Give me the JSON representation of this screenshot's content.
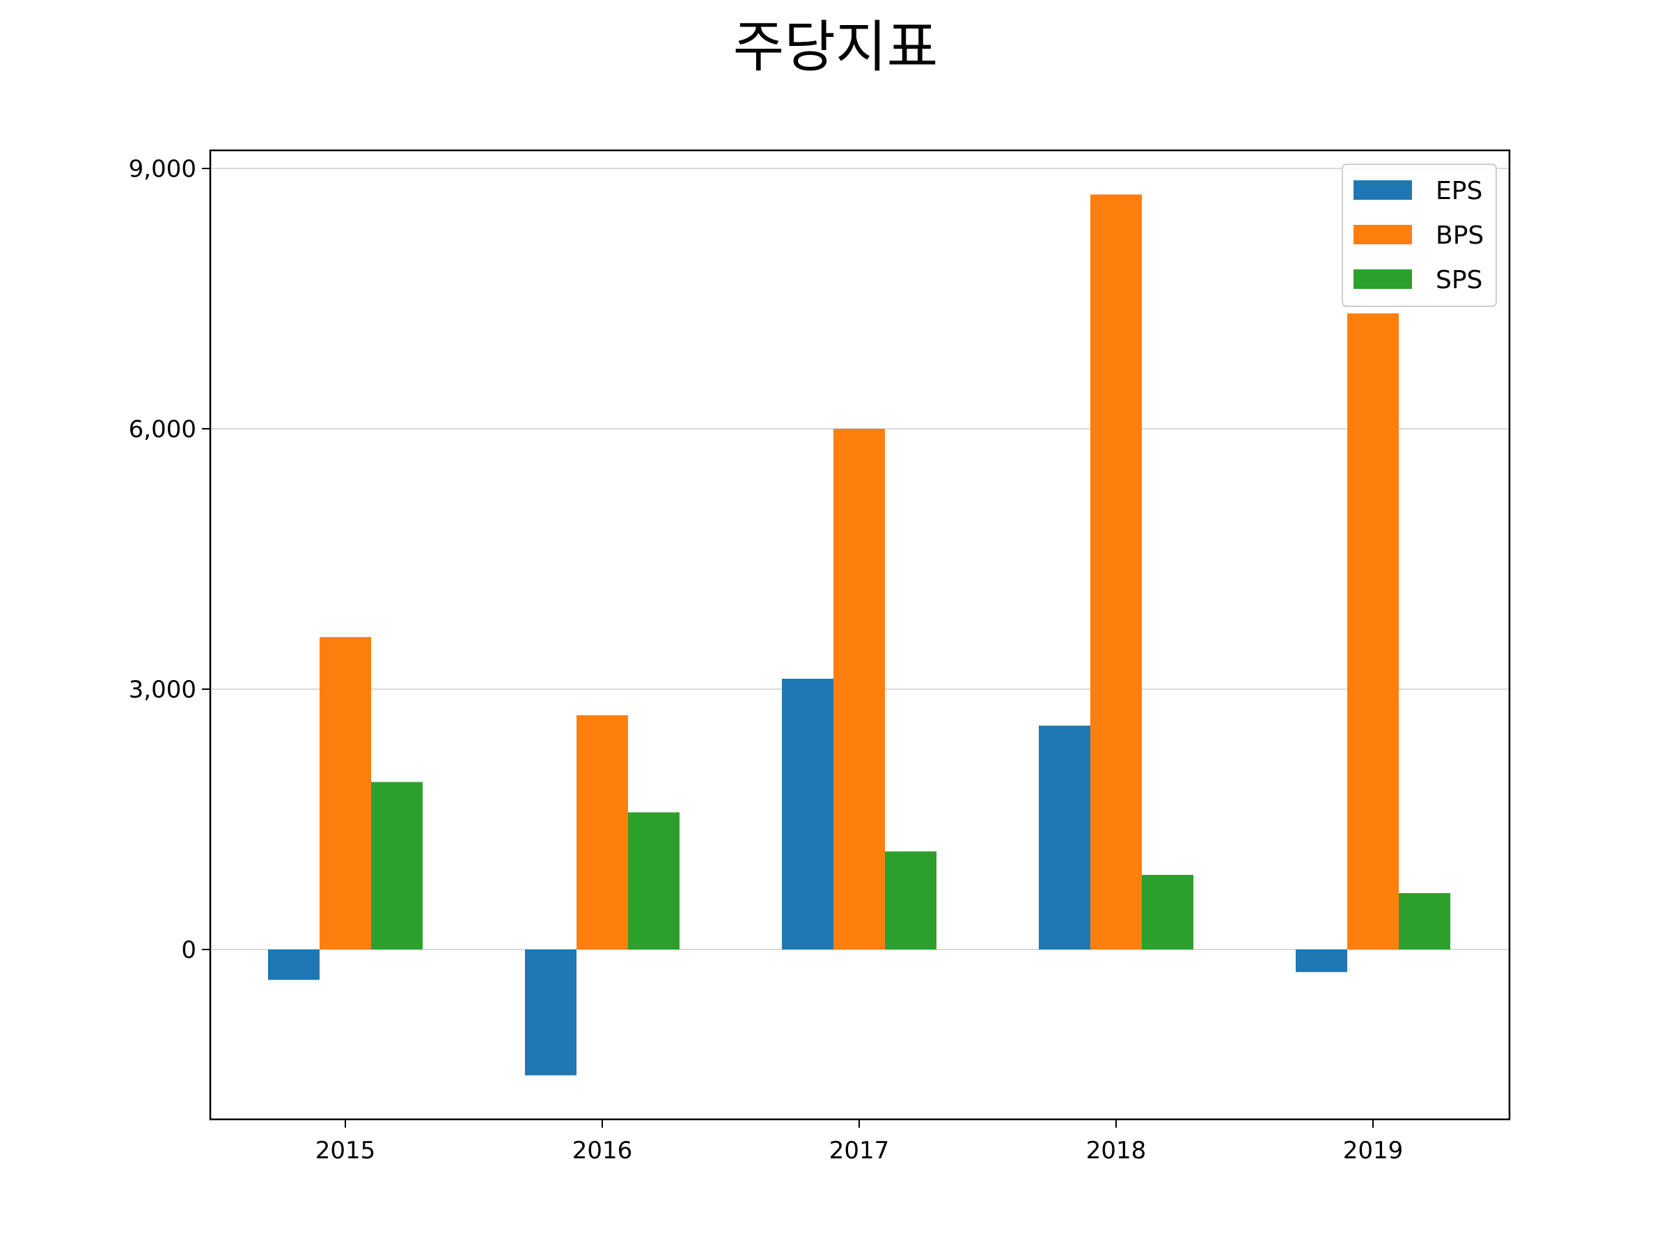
{
  "chart_data": {
    "type": "bar",
    "title": "주당지표",
    "xlabel": "",
    "ylabel": "",
    "categories": [
      "2015",
      "2016",
      "2017",
      "2018",
      "2019"
    ],
    "series": [
      {
        "name": "EPS",
        "color": "#1f77b4",
        "values": [
          -350,
          -1450,
          3120,
          2580,
          -260
        ]
      },
      {
        "name": "BPS",
        "color": "#ff7f0e",
        "values": [
          3600,
          2700,
          6000,
          8700,
          7330
        ]
      },
      {
        "name": "SPS",
        "color": "#2ca02c",
        "values": [
          1930,
          1580,
          1130,
          860,
          650
        ]
      }
    ],
    "ylim": [
      -1950,
      9200
    ],
    "yticks": [
      0,
      3000,
      6000,
      9000
    ],
    "ytick_labels": [
      "0",
      "3,000",
      "6,000",
      "9,000"
    ],
    "grid": "horizontal",
    "legend_position": "top-right"
  }
}
